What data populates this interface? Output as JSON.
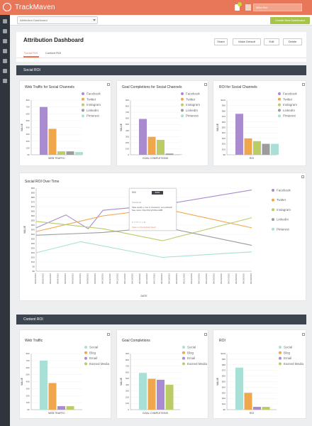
{
  "topbar": {
    "logo": "TrackMaven",
    "user_name": "Mike Kim"
  },
  "secondbar": {
    "dashboard_select": "Attribution Dashboard",
    "create_label": "Create New Dashboard"
  },
  "header": {
    "title": "Attribution Dashboard",
    "buttons": {
      "share": "Share",
      "make_default": "Make Default",
      "edit": "Edit",
      "delete": "Delete"
    },
    "tabs": [
      "Social ROI",
      "Content ROI"
    ]
  },
  "sections": {
    "social": "Social ROI",
    "content": "Content ROI"
  },
  "colors": {
    "purple": "#a98bd0",
    "orange": "#f0a64a",
    "green": "#b9cc66",
    "gray": "#9c9c9c",
    "teal": "#a8e0d8",
    "accent": "#e8775a"
  },
  "social_cards": {
    "traffic": "Web Traffic for Social Channels",
    "goals": "Goal Completions for Social Channels",
    "roi": "ROI for Social Channels"
  },
  "social_legend": [
    "Facebook",
    "Twitter",
    "Instagram",
    "LinkedIn",
    "Pinterest"
  ],
  "over_time": {
    "title": "Social ROI Over Time"
  },
  "content_cards": {
    "traffic": "Web Traffic",
    "goals": "Goal Completions",
    "roi": "ROI"
  },
  "content_legend": [
    "Social",
    "Blog",
    "Email",
    "Earned Media"
  ],
  "tooltip": {
    "amount": "$86",
    "badge": "$960",
    "source": "Facebook",
    "text": "Take slotify + zoo in investors; you pitched! See more: http://bit.ly/1NCom0B",
    "meta": "♥ 1770   ↻ 1.4K",
    "link": "View on the Activity Feed"
  },
  "chart_data": [
    {
      "type": "bar",
      "title": "Web Traffic for Social Channels",
      "xlabel": "WEB TRAFFIC",
      "ylabel": "VALUE",
      "categories": [
        "Facebook",
        "Twitter",
        "Instagram",
        "LinkedIn",
        "Pinterest"
      ],
      "values": [
        70,
        38,
        5,
        5,
        4
      ],
      "ylim": [
        0,
        80
      ],
      "ticks": [
        "0K",
        "10K",
        "20K",
        "30K",
        "40K",
        "50K",
        "60K",
        "70K",
        "80K"
      ],
      "colors": [
        "#a98bd0",
        "#f0a64a",
        "#b9cc66",
        "#9c9c9c",
        "#a8e0d8"
      ]
    },
    {
      "type": "bar",
      "title": "Goal Completions for Social Channels",
      "xlabel": "GOAL COMPLETIONS",
      "ylabel": "VALUE",
      "categories": [
        "Facebook",
        "Twitter",
        "Instagram",
        "LinkedIn",
        "Pinterest"
      ],
      "values": [
        590,
        295,
        245,
        20,
        10
      ],
      "ylim": [
        0,
        900
      ],
      "ticks": [
        "0",
        "100",
        "200",
        "300",
        "400",
        "500",
        "600",
        "700",
        "800",
        "900"
      ],
      "colors": [
        "#a98bd0",
        "#f0a64a",
        "#b9cc66",
        "#9c9c9c",
        "#a8e0d8"
      ]
    },
    {
      "type": "bar",
      "title": "ROI for Social Channels",
      "xlabel": "ROI",
      "ylabel": "VALUE",
      "categories": [
        "Facebook",
        "Twitter",
        "Instagram",
        "LinkedIn",
        "Pinterest"
      ],
      "values": [
        75,
        30,
        25,
        20,
        20
      ],
      "ylim": [
        0,
        100
      ],
      "ticks": [
        "$0",
        "$10",
        "$20",
        "$30",
        "$40",
        "$50",
        "$60",
        "$70",
        "$80",
        "$90",
        "$100"
      ],
      "colors": [
        "#a98bd0",
        "#f0a64a",
        "#b9cc66",
        "#9c9c9c",
        "#a8e0d8"
      ]
    },
    {
      "type": "line",
      "title": "Social ROI Over Time",
      "xlabel": "DATE",
      "ylabel": "VALUE",
      "x": [
        "04/01/2016",
        "04/02/2016",
        "04/03/2016",
        "04/04/2016",
        "04/05/2016",
        "04/06/2016",
        "04/07/2016",
        "04/08/2016",
        "04/09/2016",
        "04/10/2016",
        "04/11/2016",
        "04/12/2016",
        "04/13/2016",
        "04/14/2016",
        "04/15/2016",
        "04/16/2016",
        "04/17/2016",
        "04/18/2016",
        "04/19/2016",
        "04/20/2016",
        "04/21/2016",
        "04/22/2016",
        "04/23/2016",
        "04/24/2016",
        "04/25/2016",
        "04/26/2016",
        "04/27/2016",
        "04/28/2016",
        "04/29/2016",
        "04/30/2016"
      ],
      "ylim": [
        0,
        90
      ],
      "ticks": [
        "$0",
        "$5",
        "$10",
        "$15",
        "$20",
        "$25",
        "$30",
        "$35",
        "$40",
        "$45",
        "$50",
        "$55",
        "$60",
        "$65",
        "$70",
        "$75",
        "$80",
        "$85",
        "$90"
      ],
      "series": [
        {
          "name": "Facebook",
          "color": "#a98bd0",
          "points": [
            [
              0,
              47
            ],
            [
              4,
              61
            ],
            [
              7,
              46
            ],
            [
              9,
              66
            ],
            [
              17,
              72
            ],
            [
              29,
              88
            ]
          ]
        },
        {
          "name": "Twitter",
          "color": "#f0a64a",
          "points": [
            [
              0,
              43
            ],
            [
              9,
              60
            ],
            [
              17,
              68
            ],
            [
              29,
              47
            ]
          ]
        },
        {
          "name": "Instagram",
          "color": "#b9cc66",
          "points": [
            [
              0,
              54
            ],
            [
              9,
              46
            ],
            [
              17,
              33
            ],
            [
              29,
              58
            ]
          ]
        },
        {
          "name": "LinkedIn",
          "color": "#9c9c9c",
          "points": [
            [
              0,
              39
            ],
            [
              9,
              42
            ],
            [
              17,
              48
            ],
            [
              29,
              28
            ]
          ]
        },
        {
          "name": "Pinterest",
          "color": "#a8e0d8",
          "points": [
            [
              0,
              20
            ],
            [
              6,
              32
            ],
            [
              17,
              15
            ],
            [
              29,
              21
            ]
          ]
        }
      ]
    },
    {
      "type": "bar",
      "title": "Web Traffic",
      "xlabel": "WEB TRAFFIC",
      "ylabel": "VALUE",
      "categories": [
        "Social",
        "Blog",
        "Email",
        "Earned Media"
      ],
      "values": [
        70,
        38,
        5,
        5
      ],
      "ylim": [
        0,
        80
      ],
      "ticks": [
        "0K",
        "10K",
        "20K",
        "30K",
        "40K",
        "50K",
        "60K",
        "70K",
        "80K"
      ],
      "colors": [
        "#a8e0d8",
        "#f0a64a",
        "#a98bd0",
        "#b9cc66"
      ]
    },
    {
      "type": "bar",
      "title": "Goal Completions",
      "xlabel": "GOAL COMPLETIONS",
      "ylabel": "VALUE",
      "categories": [
        "Social",
        "Blog",
        "Email",
        "Earned Media"
      ],
      "values": [
        590,
        495,
        480,
        400
      ],
      "ylim": [
        0,
        900
      ],
      "ticks": [
        "0",
        "100",
        "200",
        "300",
        "400",
        "500",
        "600",
        "700",
        "800",
        "900"
      ],
      "colors": [
        "#a8e0d8",
        "#f0a64a",
        "#a98bd0",
        "#b9cc66"
      ]
    },
    {
      "type": "bar",
      "title": "ROI",
      "xlabel": "ROI",
      "ylabel": "VALUE",
      "categories": [
        "Social",
        "Blog",
        "Email",
        "Earned Media"
      ],
      "values": [
        75,
        30,
        5,
        5
      ],
      "ylim": [
        0,
        100
      ],
      "ticks": [
        "$0",
        "$10",
        "$20",
        "$30",
        "$40",
        "$50",
        "$60",
        "$70",
        "$80",
        "$90",
        "$100"
      ],
      "colors": [
        "#a8e0d8",
        "#f0a64a",
        "#a98bd0",
        "#b9cc66"
      ]
    }
  ]
}
